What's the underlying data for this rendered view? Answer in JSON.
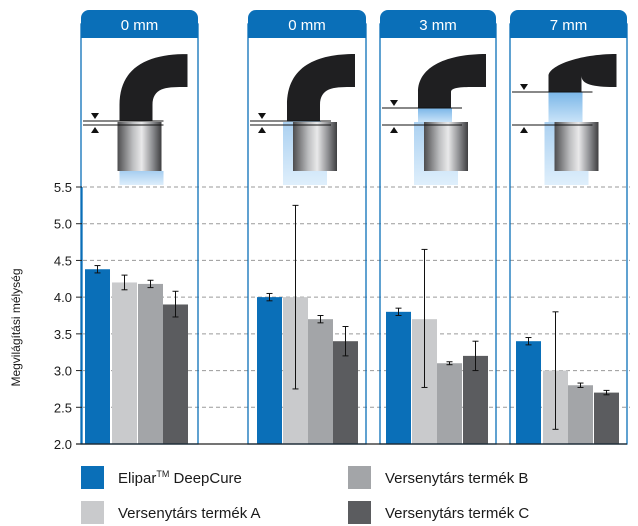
{
  "chart_data": {
    "type": "bar",
    "ylabel": "Megvilágítási mélység",
    "ylim": [
      2.0,
      5.5
    ],
    "yticks": [
      2.0,
      2.5,
      3.0,
      3.5,
      4.0,
      4.5,
      5.0,
      5.5
    ],
    "grid": "horizontal-dashed",
    "legend_position": "bottom",
    "panels": [
      {
        "label": "0 mm",
        "values": [
          4.38,
          4.2,
          4.18,
          3.9
        ],
        "err_low": [
          4.33,
          4.1,
          4.13,
          3.73
        ],
        "err_high": [
          4.43,
          4.3,
          4.23,
          4.08
        ]
      },
      {
        "label": "0 mm",
        "values": [
          4.0,
          4.0,
          3.7,
          3.4
        ],
        "err_low": [
          3.95,
          2.75,
          3.65,
          3.2
        ],
        "err_high": [
          4.05,
          5.25,
          3.75,
          3.6
        ]
      },
      {
        "label": "3 mm",
        "values": [
          3.8,
          3.7,
          3.1,
          3.2
        ],
        "err_low": [
          3.75,
          2.77,
          3.08,
          3.0
        ],
        "err_high": [
          3.85,
          4.65,
          3.12,
          3.4
        ]
      },
      {
        "label": "7 mm",
        "values": [
          3.4,
          3.0,
          2.8,
          2.7
        ],
        "err_low": [
          3.35,
          2.2,
          2.77,
          2.67
        ],
        "err_high": [
          3.45,
          3.8,
          2.83,
          2.73
        ]
      }
    ],
    "series": [
      {
        "name": "Elipar™ DeepCure",
        "color": "#0a6fb8"
      },
      {
        "name": "Versenytárs termék A",
        "color": "#c9cacc"
      },
      {
        "name": "Versenytárs termék B",
        "color": "#a3a5a8"
      },
      {
        "name": "Versenytárs termék C",
        "color": "#5b5c5f"
      }
    ]
  },
  "colors": {
    "accent": "#0a6fb8",
    "panel_border": "#0a6fb8",
    "grid": "#9a9a9a"
  }
}
